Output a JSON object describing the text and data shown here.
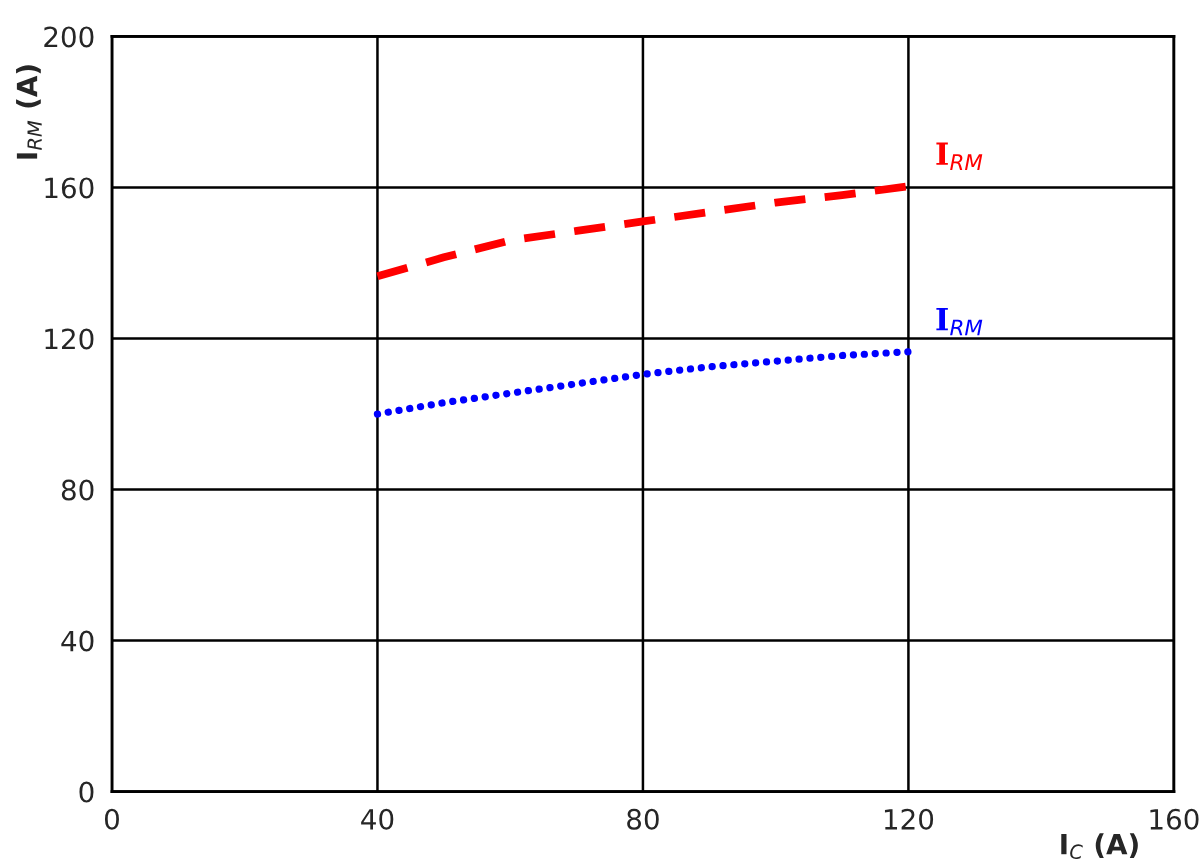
{
  "chart_data": {
    "type": "line",
    "xlabel": "I$_{C}$ (A)",
    "ylabel": "I$_{RM}$ (A)",
    "x": [
      40,
      50,
      60,
      70,
      80,
      90,
      100,
      110,
      120
    ],
    "series": [
      {
        "name": "I$_{RM}$",
        "color": "#ff0000",
        "line_style": "dashed",
        "values": [
          136.5,
          141.5,
          146,
          148.5,
          151,
          153.5,
          156,
          158,
          160.3
        ]
      },
      {
        "name": "I$_{RM}$",
        "color": "#0000ff",
        "line_style": "dotted",
        "values": [
          100,
          103,
          105.5,
          108,
          110.5,
          112.5,
          114,
          115.5,
          116.5
        ]
      }
    ],
    "xlim": [
      0,
      160
    ],
    "ylim": [
      0,
      200
    ],
    "xticks": [
      0,
      40,
      80,
      120,
      160
    ],
    "yticks": [
      0,
      40,
      80,
      120,
      160,
      200
    ],
    "grid": true,
    "legend": false,
    "marker": "none"
  }
}
